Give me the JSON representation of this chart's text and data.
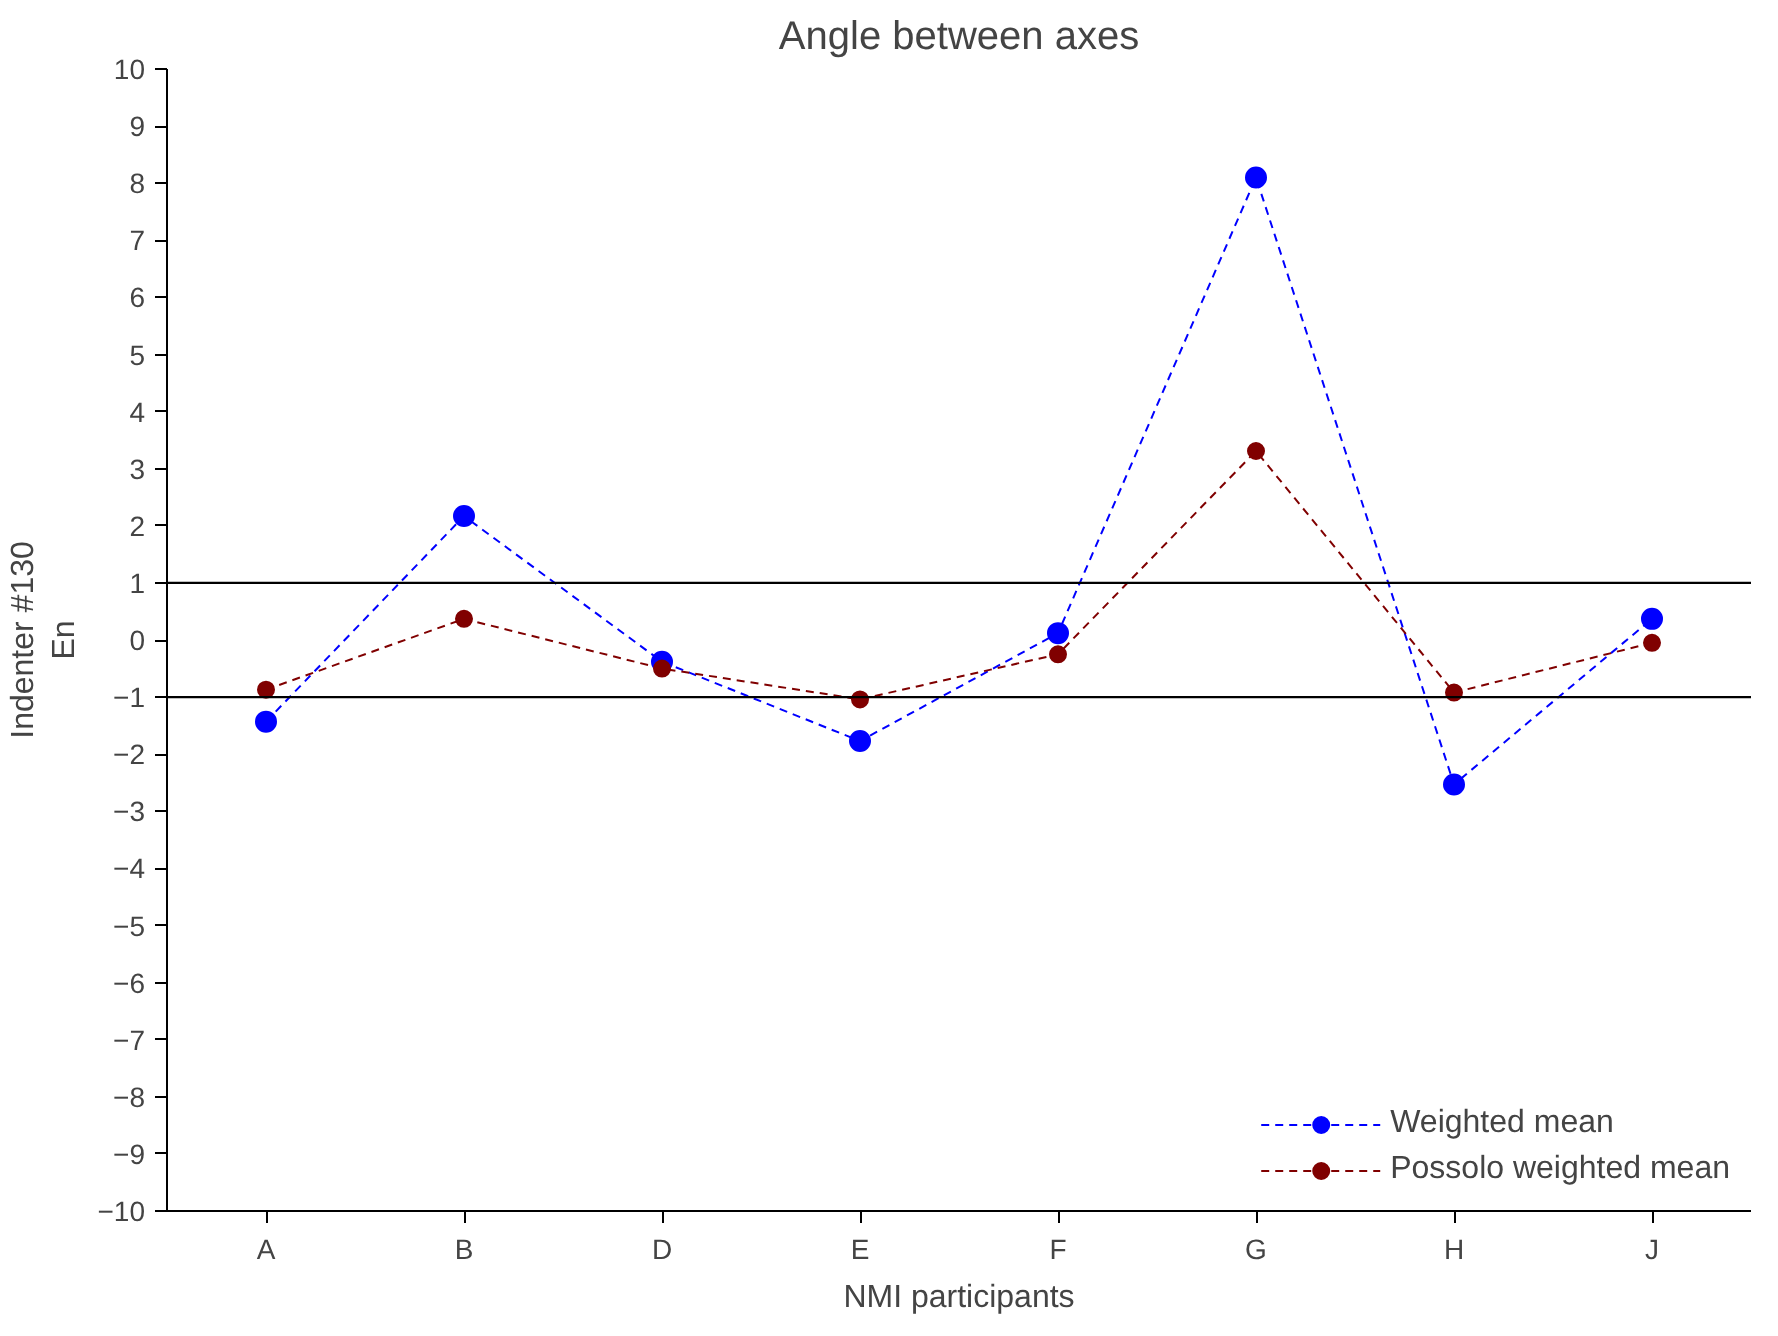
{
  "chart_data": {
    "type": "line",
    "title": "Angle between axes",
    "xlabel": "NMI participants",
    "ylabel": "Indenter #130\nEn",
    "categories": [
      "A",
      "B",
      "D",
      "E",
      "F",
      "G",
      "H",
      "J"
    ],
    "series": [
      {
        "name": "Weighted mean",
        "color": "#0000ff",
        "values": [
          -1.43,
          2.17,
          -0.38,
          -1.77,
          0.12,
          8.1,
          -2.53,
          0.37
        ]
      },
      {
        "name": "Possolo weighted mean",
        "color": "#800000",
        "values": [
          -0.87,
          0.37,
          -0.5,
          -1.04,
          -0.25,
          3.31,
          -0.92,
          -0.05
        ]
      }
    ],
    "ylim": [
      -10,
      10
    ],
    "yticks": [
      -10,
      -9,
      -8,
      -7,
      -6,
      -5,
      -4,
      -3,
      -2,
      -1,
      0,
      1,
      2,
      3,
      4,
      5,
      6,
      7,
      8,
      9,
      10
    ],
    "ref_lines": [
      {
        "axis": "y",
        "value": 1,
        "color": "#000000"
      },
      {
        "axis": "y",
        "value": -1,
        "color": "#000000"
      }
    ],
    "grid": false,
    "legend": "bottom right",
    "marker": "circle",
    "line_style": "dashed"
  }
}
